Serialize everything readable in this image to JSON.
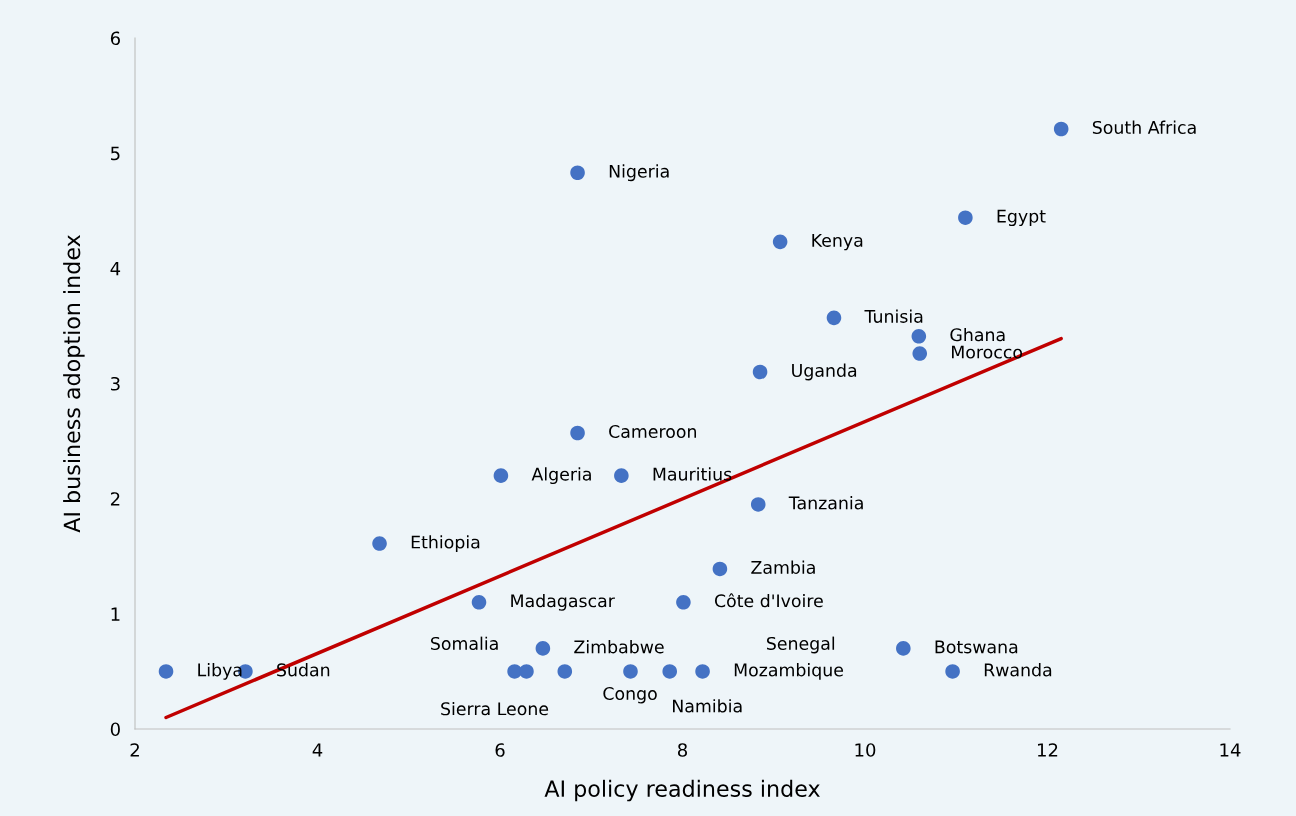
{
  "chart_data": {
    "type": "scatter",
    "xlabel": "AI policy readiness index",
    "ylabel": "AI business adoption index",
    "xlim": [
      2,
      14
    ],
    "ylim": [
      0,
      6
    ],
    "xticks": [
      2,
      4,
      6,
      8,
      10,
      12,
      14
    ],
    "yticks": [
      0,
      1,
      2,
      3,
      4,
      5,
      6
    ],
    "grid": false,
    "legend": false,
    "series": [
      {
        "marker": "circle",
        "color": "#4472c4",
        "x": [
          2.34,
          3.21,
          4.68,
          5.77,
          6.01,
          6.85,
          6.85,
          7.33,
          8.01,
          8.41,
          8.83,
          8.85,
          9.07,
          9.66,
          10.59,
          10.6,
          11.1,
          12.15,
          10.42,
          10.96,
          6.47,
          6.16,
          6.29,
          6.71,
          7.43,
          7.86,
          8.22
        ],
        "values": [
          0.5,
          0.5,
          1.61,
          1.1,
          2.2,
          2.57,
          4.83,
          2.2,
          1.1,
          1.39,
          1.95,
          3.1,
          4.23,
          3.57,
          3.41,
          3.26,
          4.44,
          5.21,
          0.7,
          0.5,
          0.7,
          0.5,
          0.5,
          0.5,
          0.5,
          0.5,
          0.5
        ]
      },
      {
        "type": "line",
        "color": "#c00000",
        "x": [
          2.34,
          12.15
        ],
        "values": [
          0.1,
          3.39
        ]
      }
    ],
    "annotations": [
      {
        "text": "Libya",
        "x": 2.34,
        "y": 0.5
      },
      {
        "text": "Sudan",
        "x": 3.21,
        "y": 0.5
      },
      {
        "text": "Ethiopia",
        "x": 4.68,
        "y": 1.61
      },
      {
        "text": "Madagascar",
        "x": 5.77,
        "y": 1.1
      },
      {
        "text": "Algeria",
        "x": 6.01,
        "y": 2.2
      },
      {
        "text": "Cameroon",
        "x": 6.85,
        "y": 2.57
      },
      {
        "text": "Nigeria",
        "x": 6.85,
        "y": 4.83
      },
      {
        "text": "Mauritius",
        "x": 7.33,
        "y": 2.2
      },
      {
        "text": "Côte d'Ivoire",
        "x": 8.01,
        "y": 1.1
      },
      {
        "text": "Zambia",
        "x": 8.41,
        "y": 1.39
      },
      {
        "text": "Tanzania",
        "x": 8.83,
        "y": 1.95
      },
      {
        "text": "Uganda",
        "x": 8.85,
        "y": 3.1
      },
      {
        "text": "Kenya",
        "x": 9.07,
        "y": 4.23
      },
      {
        "text": "Tunisia",
        "x": 9.66,
        "y": 3.57
      },
      {
        "text": "Ghana",
        "x": 10.59,
        "y": 3.41
      },
      {
        "text": "Morocco",
        "x": 10.6,
        "y": 3.26
      },
      {
        "text": "Egypt",
        "x": 11.1,
        "y": 4.44
      },
      {
        "text": "South Africa",
        "x": 12.15,
        "y": 5.21
      },
      {
        "text": "Botswana",
        "x": 10.42,
        "y": 0.7
      },
      {
        "text": "Rwanda",
        "x": 10.96,
        "y": 0.5
      },
      {
        "text": "Zimbabwe",
        "x": 6.47,
        "y": 0.7
      },
      {
        "text": "Somalia",
        "x": 6.16,
        "y": 0.5
      },
      {
        "text": "Sierra Leone",
        "x": 6.29,
        "y": 0.5
      },
      {
        "text": "Congo",
        "x": 6.71,
        "y": 0.5
      },
      "Senegal",
      {
        "text": "Namibia",
        "x": 7.86,
        "y": 0.5
      },
      {
        "text": "Mozambique",
        "x": 8.22,
        "y": 0.5
      }
    ]
  }
}
